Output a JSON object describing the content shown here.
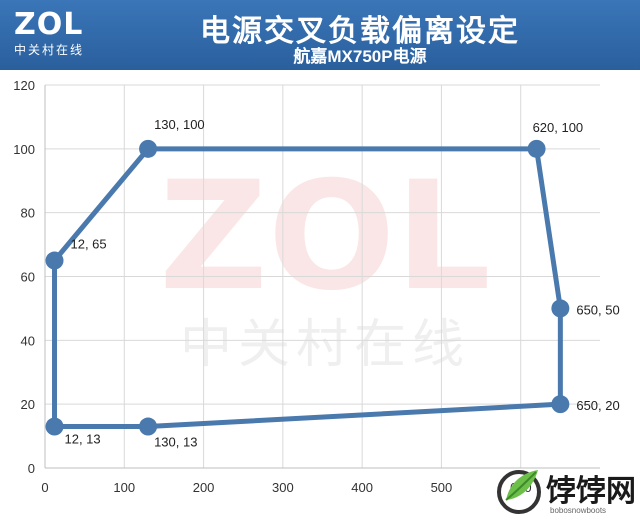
{
  "header": {
    "logo_text": "ZOL",
    "logo_sub": "中关村在线",
    "title": "电源交叉负载偏离设定",
    "subtitle": "航嘉MX750P电源"
  },
  "watermark": {
    "logo": "ZOL",
    "text": "中关村在线"
  },
  "site_logo": {
    "name": "饽饽网",
    "url": "bobosnowboots"
  },
  "colors": {
    "header": "#2f68a8",
    "series": "#4a79ad",
    "grid": "#d9d9d9"
  },
  "chart_data": {
    "type": "scatter",
    "connected": true,
    "closed": true,
    "title": "",
    "xlabel": "",
    "ylabel": "",
    "xlim": [
      0,
      700
    ],
    "ylim": [
      0,
      120
    ],
    "x_ticks": [
      0,
      100,
      200,
      300,
      400,
      500,
      600
    ],
    "y_ticks": [
      0,
      20,
      40,
      60,
      80,
      100,
      120
    ],
    "grid": true,
    "points": [
      {
        "x": 12,
        "y": 13,
        "label": "12, 13"
      },
      {
        "x": 12,
        "y": 65,
        "label": "12, 65"
      },
      {
        "x": 130,
        "y": 100,
        "label": "130, 100"
      },
      {
        "x": 620,
        "y": 100,
        "label": "620, 100"
      },
      {
        "x": 650,
        "y": 50,
        "label": "650, 50"
      },
      {
        "x": 650,
        "y": 20,
        "label": "650, 20"
      },
      {
        "x": 130,
        "y": 13,
        "label": "130, 13"
      }
    ]
  }
}
